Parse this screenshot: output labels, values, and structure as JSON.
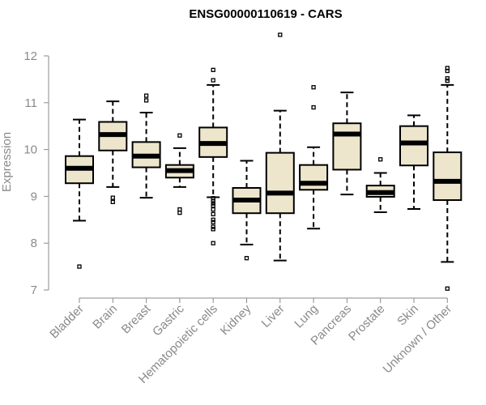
{
  "chart_data": {
    "type": "boxplot",
    "title": "ENSG00000110619 - CARS",
    "xlabel": "",
    "ylabel": "Expression",
    "ylim": [
      7,
      12
    ],
    "yticks": [
      7,
      8,
      9,
      10,
      11,
      12
    ],
    "grid": false,
    "box_fill": "#ede6cc",
    "categories": [
      "Bladder",
      "Brain",
      "Breast",
      "Gastric",
      "Hematopoietic cells",
      "Kidney",
      "Liver",
      "Lung",
      "Pancreas",
      "Prostate",
      "Skin",
      "Unknown / Other"
    ],
    "boxes": [
      {
        "whisker_low": 8.48,
        "q1": 9.28,
        "median": 9.6,
        "q3": 9.86,
        "whisker_high": 10.64,
        "outliers": [
          7.5
        ]
      },
      {
        "whisker_low": 9.2,
        "q1": 9.98,
        "median": 10.32,
        "q3": 10.59,
        "whisker_high": 11.03,
        "outliers": [
          8.97,
          8.88
        ]
      },
      {
        "whisker_low": 8.97,
        "q1": 9.62,
        "median": 9.86,
        "q3": 10.16,
        "whisker_high": 10.79,
        "outliers": [
          11.15,
          11.05
        ]
      },
      {
        "whisker_low": 9.2,
        "q1": 9.4,
        "median": 9.55,
        "q3": 9.67,
        "whisker_high": 10.03,
        "outliers": [
          10.3,
          8.72,
          8.65
        ]
      },
      {
        "whisker_low": 8.98,
        "q1": 9.84,
        "median": 10.13,
        "q3": 10.47,
        "whisker_high": 11.38,
        "outliers": [
          11.7,
          11.48,
          8.96,
          8.9,
          8.85,
          8.8,
          8.72,
          8.62,
          8.5,
          8.45,
          8.35,
          8.3,
          8.0
        ]
      },
      {
        "whisker_low": 7.97,
        "q1": 8.64,
        "median": 8.92,
        "q3": 9.18,
        "whisker_high": 9.76,
        "outliers": [
          7.68
        ]
      },
      {
        "whisker_low": 7.63,
        "q1": 8.64,
        "median": 9.07,
        "q3": 9.93,
        "whisker_high": 10.83,
        "outliers": [
          12.45
        ]
      },
      {
        "whisker_low": 8.31,
        "q1": 9.14,
        "median": 9.28,
        "q3": 9.67,
        "whisker_high": 10.05,
        "outliers": [
          11.33,
          10.9
        ]
      },
      {
        "whisker_low": 9.04,
        "q1": 9.57,
        "median": 10.33,
        "q3": 10.56,
        "whisker_high": 11.22,
        "outliers": []
      },
      {
        "whisker_low": 8.66,
        "q1": 8.99,
        "median": 9.08,
        "q3": 9.23,
        "whisker_high": 9.5,
        "outliers": [
          9.79
        ]
      },
      {
        "whisker_low": 8.73,
        "q1": 9.66,
        "median": 10.14,
        "q3": 10.5,
        "whisker_high": 10.73,
        "outliers": []
      },
      {
        "whisker_low": 7.6,
        "q1": 8.92,
        "median": 9.32,
        "q3": 9.94,
        "whisker_high": 11.38,
        "outliers": [
          11.74,
          11.68,
          11.52,
          11.47,
          7.03
        ]
      }
    ]
  }
}
